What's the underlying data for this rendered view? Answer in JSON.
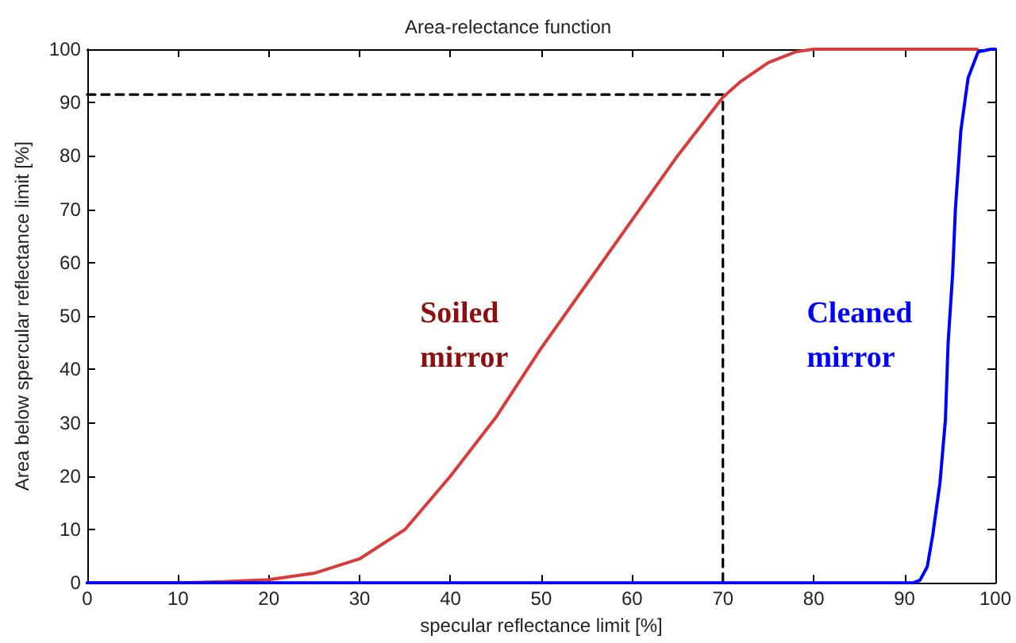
{
  "chart_data": {
    "type": "line",
    "title": "Area-relectance function",
    "xlabel": "specular reflectance limit [%]",
    "ylabel": "Area below spercular reflectance limit [%]",
    "xlim": [
      0,
      100
    ],
    "ylim": [
      0,
      100
    ],
    "xticks": [
      0,
      10,
      20,
      30,
      40,
      50,
      60,
      70,
      80,
      90,
      100
    ],
    "yticks": [
      0,
      10,
      20,
      30,
      40,
      50,
      60,
      70,
      80,
      90,
      100
    ],
    "grid": false,
    "legend": false,
    "marker": "none",
    "series": [
      {
        "name": "Soiled mirror",
        "color": "#d93a3a",
        "x": [
          0,
          10,
          15,
          20,
          25,
          30,
          35,
          40,
          45,
          50,
          55,
          60,
          65,
          70,
          72,
          75,
          78,
          80,
          85,
          90,
          95,
          98
        ],
        "values": [
          0,
          0,
          0.2,
          0.6,
          1.8,
          4.5,
          10,
          20,
          31,
          44,
          56,
          68,
          80,
          91,
          94,
          97.5,
          99.5,
          100,
          100,
          100,
          100,
          100
        ]
      },
      {
        "name": "Cleaned mirror",
        "color": "#0000ff",
        "x": [
          0,
          20,
          40,
          60,
          80,
          90,
          91,
          91.7,
          92.5,
          93.1,
          93.9,
          94.5,
          94.8,
          95.3,
          95.6,
          96.2,
          97,
          98.1,
          99.5,
          100
        ],
        "values": [
          0,
          0,
          0,
          0,
          0,
          0,
          0,
          0.5,
          3,
          8.9,
          18.7,
          30.5,
          45,
          58,
          70,
          84.7,
          94.6,
          99.5,
          100,
          100
        ]
      },
      {
        "color": "#000000",
        "line_style": "dashed",
        "x": [
          0,
          70,
          70
        ],
        "values": [
          91.5,
          91.5,
          0
        ]
      }
    ]
  }
}
